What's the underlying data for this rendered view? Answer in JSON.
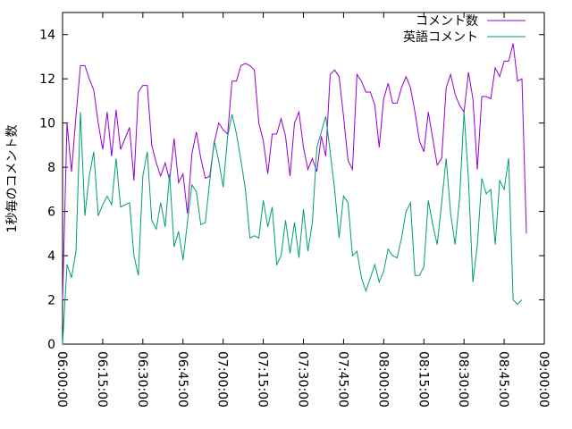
{
  "chart_data": {
    "type": "line",
    "title": "",
    "xlabel": "",
    "ylabel": "1秒毎のコメント数",
    "xlim": [
      "06:00:00",
      "09:00:00"
    ],
    "ylim": [
      0,
      15
    ],
    "xticks": [
      "06:00:00",
      "06:15:00",
      "06:30:00",
      "06:45:00",
      "07:00:00",
      "07:15:00",
      "07:30:00",
      "07:45:00",
      "08:00:00",
      "08:15:00",
      "08:30:00",
      "08:45:00",
      "09:00:00"
    ],
    "yticks": [
      "0",
      "2",
      "4",
      "6",
      "8",
      "10",
      "12",
      "14"
    ],
    "grid": false,
    "legend_position": "top-right",
    "x_start": "06:00:00",
    "x_step_seconds": 100,
    "series": [
      {
        "name": "コメント数",
        "color": "#9400d3",
        "values": [
          2.0,
          10.0,
          7.8,
          10.3,
          12.6,
          12.6,
          12.0,
          11.5,
          10.0,
          8.8,
          10.5,
          8.5,
          10.6,
          8.8,
          9.3,
          9.8,
          7.4,
          11.4,
          11.7,
          11.7,
          9.0,
          8.2,
          7.6,
          8.2,
          7.4,
          9.3,
          7.3,
          7.7,
          5.9,
          8.6,
          9.6,
          8.4,
          7.5,
          7.6,
          9.1,
          10.0,
          9.7,
          9.5,
          11.9,
          11.9,
          12.6,
          12.7,
          12.6,
          12.4,
          10.0,
          9.2,
          7.7,
          9.5,
          9.5,
          10.2,
          9.4,
          7.6,
          10.0,
          10.5,
          8.9,
          7.9,
          8.4,
          7.8,
          9.4,
          8.5,
          12.2,
          12.4,
          12.1,
          10.3,
          8.3,
          7.9,
          12.2,
          11.9,
          11.4,
          11.4,
          10.8,
          8.9,
          11.1,
          11.8,
          10.9,
          10.9,
          11.6,
          12.1,
          11.6,
          10.5,
          9.2,
          8.7,
          10.5,
          9.3,
          8.1,
          8.4,
          11.6,
          12.2,
          11.3,
          10.8,
          10.5,
          12.3,
          11.1,
          7.9,
          11.2,
          11.2,
          11.1,
          12.5,
          12.1,
          12.8,
          12.8,
          13.6,
          11.9,
          12.0,
          5.0
        ]
      },
      {
        "name": "英語コメント",
        "color": "#009e73",
        "values": [
          0.0,
          3.6,
          3.0,
          4.2,
          10.5,
          5.8,
          7.6,
          8.7,
          5.8,
          6.3,
          6.7,
          6.3,
          8.4,
          6.2,
          6.3,
          6.4,
          4.0,
          3.1,
          7.6,
          8.7,
          5.6,
          5.2,
          6.4,
          5.3,
          7.7,
          4.4,
          5.1,
          3.8,
          5.5,
          7.2,
          6.9,
          5.4,
          5.5,
          7.4,
          9.2,
          8.3,
          7.1,
          9.4,
          10.4,
          9.5,
          8.3,
          7.0,
          4.8,
          4.9,
          4.8,
          6.5,
          5.3,
          6.2,
          3.6,
          4.0,
          5.6,
          4.1,
          5.5,
          3.9,
          6.1,
          4.2,
          5.5,
          8.9,
          9.6,
          10.3,
          8.7,
          7.0,
          4.8,
          6.7,
          6.4,
          4.0,
          4.2,
          3.0,
          2.4,
          3.0,
          3.6,
          2.8,
          3.3,
          4.3,
          4.0,
          3.9,
          4.8,
          6.0,
          6.4,
          3.1,
          3.1,
          3.5,
          6.5,
          5.4,
          4.5,
          6.4,
          8.4,
          5.9,
          4.5,
          6.6,
          10.5,
          7.4,
          2.8,
          4.5,
          7.5,
          6.8,
          7.0,
          4.5,
          7.4,
          7.0,
          8.4,
          2.0,
          1.8,
          2.0
        ]
      }
    ]
  }
}
